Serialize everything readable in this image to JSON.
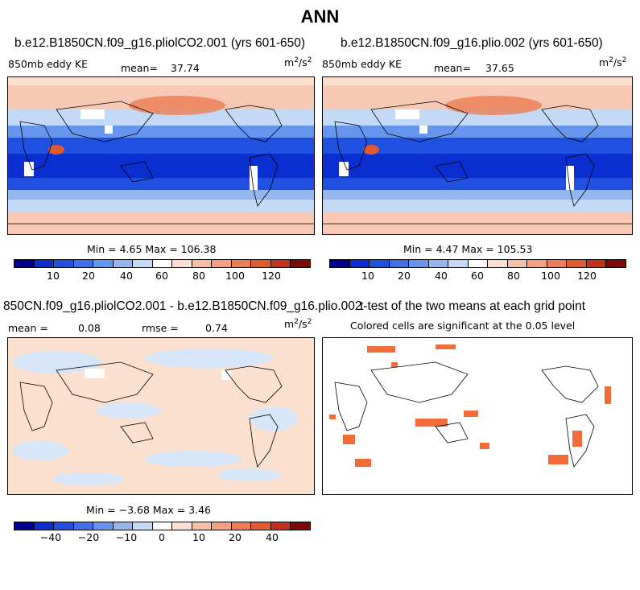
{
  "figure_title": "ANN",
  "units": {
    "base": "m",
    "exp1": "2",
    "sep": "/s",
    "exp2": "2"
  },
  "panels": {
    "top_left": {
      "title": "b.e12.B1850CN.f09_g16.pliolCO2.001 (yrs 601-650)",
      "variable": "850mb eddy KE",
      "mean_label": "mean=",
      "mean_value": "37.74",
      "stats": "Min =   4.65 Max = 106.38"
    },
    "top_right": {
      "title": "b.e12.B1850CN.f09_g16.plio.002 (yrs 601-650)",
      "variable": "850mb eddy KE",
      "mean_label": "mean=",
      "mean_value": "37.65",
      "stats": "Min =   4.47 Max = 105.53"
    },
    "bottom_left": {
      "title": "850CN.f09_g16.pliolCO2.001 - b.e12.B1850CN.f09_g16.plio.002",
      "mean_label": "mean =",
      "mean_value": "0.08",
      "rmse_label": "rmse =",
      "rmse_value": "0.74",
      "stats": "Min =  −3.68 Max =   3.46"
    },
    "bottom_right": {
      "title": "t-test of the two means at each grid point",
      "subtitle": "Colored cells are significant at the 0.05 level"
    }
  },
  "chart_data": [
    {
      "type": "heatmap",
      "name": "850mb eddy KE (pliolCO2.001)",
      "title": "b.e12.B1850CN.f09_g16.pliolCO2.001 (yrs 601-650)",
      "mean": 37.74,
      "min": 4.65,
      "max": 106.38,
      "units": "m^2/s^2",
      "colorbar": {
        "levels": [
          5,
          10,
          15,
          20,
          30,
          40,
          50,
          60,
          70,
          80,
          90,
          100,
          110,
          120,
          130
        ],
        "tick_labels": [
          "10",
          "20",
          "40",
          "60",
          "80",
          "100",
          "120"
        ]
      }
    },
    {
      "type": "heatmap",
      "name": "850mb eddy KE (plio.002)",
      "title": "b.e12.B1850CN.f09_g16.plio.002 (yrs 601-650)",
      "mean": 37.65,
      "min": 4.47,
      "max": 105.53,
      "units": "m^2/s^2",
      "colorbar": {
        "levels": [
          5,
          10,
          15,
          20,
          30,
          40,
          50,
          60,
          70,
          80,
          90,
          100,
          110,
          120,
          130
        ],
        "tick_labels": [
          "10",
          "20",
          "40",
          "60",
          "80",
          "100",
          "120"
        ]
      }
    },
    {
      "type": "heatmap",
      "name": "difference",
      "title": "850CN.f09_g16.pliolCO2.001 - b.e12.B1850CN.f09_g16.plio.002",
      "mean": 0.08,
      "rmse": 0.74,
      "min": -3.68,
      "max": 3.46,
      "units": "m^2/s^2",
      "colorbar": {
        "levels": [
          -50,
          -40,
          -30,
          -20,
          -15,
          -10,
          -5,
          0,
          5,
          10,
          15,
          20,
          30,
          40,
          50
        ],
        "tick_labels": [
          "−40",
          "−20",
          "−10",
          "0",
          "10",
          "20",
          "40"
        ]
      }
    },
    {
      "type": "heatmap",
      "name": "t-test significance",
      "title": "t-test of the two means at each grid point",
      "subtitle": "Colored cells are significant at the 0.05 level",
      "significance_level": 0.05
    }
  ],
  "colors": {
    "palette": [
      "#00008c",
      "#0a2ecf",
      "#1f50e0",
      "#3d6fe8",
      "#6595ec",
      "#93b6f0",
      "#c3d9f6",
      "#ffffff",
      "#fbe0d0",
      "#f6c0a5",
      "#f2a07e",
      "#ec7d55",
      "#e05a2f",
      "#c2321b",
      "#7c0a06"
    ],
    "significant": "#f26c3a"
  }
}
